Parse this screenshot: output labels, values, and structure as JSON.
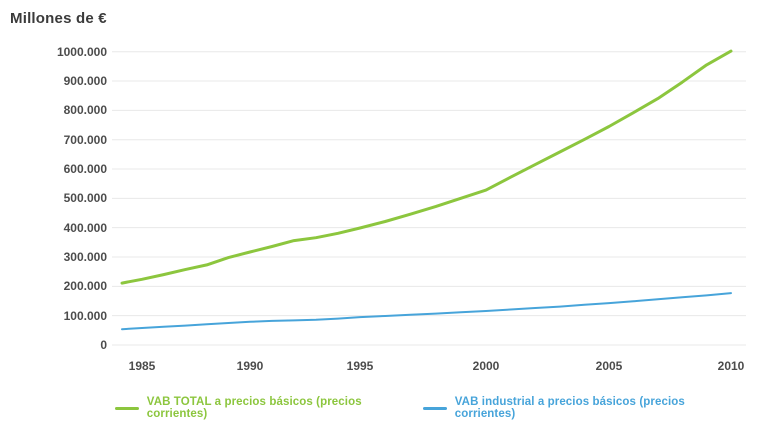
{
  "chart_data": {
    "type": "line",
    "title": "Millones de €",
    "x_label": "",
    "y_label": "",
    "x": [
      1984,
      1985,
      1986,
      1987,
      1988,
      1989,
      1990,
      1991,
      1992,
      1993,
      1994,
      1995,
      1996,
      1997,
      1998,
      1999,
      2000,
      2001,
      2002,
      2003,
      2004,
      2005,
      2006,
      2007,
      2008,
      2009,
      2010
    ],
    "series": [
      {
        "name": "VAB TOTAL a precios básicos (precios corrientes)",
        "color": "#8cc63e",
        "line_width": 3,
        "values": [
          211000,
          224000,
          240000,
          257000,
          273000,
          298000,
          317000,
          336000,
          356000,
          366000,
          381000,
          399000,
          421000,
          446000,
          472000,
          500000,
          528000,
          572000,
          615000,
          658000,
          701000,
          745000,
          792000,
          840000,
          896000,
          955000,
          1002000
        ]
      },
      {
        "name": "VAB industrial a precios básicos (precios corrientes)",
        "color": "#47a4da",
        "line_width": 2,
        "values": [
          54000,
          58000,
          62000,
          66000,
          71000,
          75000,
          79000,
          82000,
          84000,
          86000,
          90000,
          95000,
          99000,
          103000,
          107000,
          112000,
          116000,
          121000,
          126000,
          131000,
          137000,
          143000,
          149000,
          156000,
          163000,
          169000,
          177000
        ]
      }
    ],
    "y_ticks": [
      {
        "label": "1000.000",
        "value": 1000000
      },
      {
        "label": "900.000",
        "value": 900000
      },
      {
        "label": "800.000",
        "value": 800000
      },
      {
        "label": "700.000",
        "value": 700000
      },
      {
        "label": "600.000",
        "value": 600000
      },
      {
        "label": "500.000",
        "value": 500000
      },
      {
        "label": "400.000",
        "value": 400000
      },
      {
        "label": "300.000",
        "value": 300000
      },
      {
        "label": "200.000",
        "value": 200000
      },
      {
        "label": "100.000",
        "value": 100000
      },
      {
        "label": "0",
        "value": 0
      }
    ],
    "x_ticks": [
      {
        "label": "1985",
        "year": 1985
      },
      {
        "label": "1990",
        "year": 1990
      },
      {
        "label": "1995",
        "year": 1995
      },
      {
        "label": "2000",
        "year": 2000
      },
      {
        "label": "2005",
        "year": 2005
      },
      {
        "label": "2010",
        "year": 2010
      }
    ],
    "ylim": [
      0,
      1000000
    ],
    "grid": "horizontal",
    "grid_color": "#e8e8e8",
    "legend_position": "bottom"
  }
}
